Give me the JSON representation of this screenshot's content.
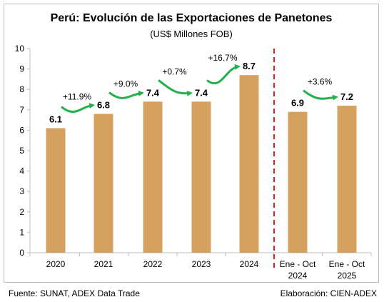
{
  "title": "Perú: Evolución de las Exportaciones de Panetones",
  "subtitle": "(US$ Millones FOB)",
  "footer": {
    "source": "Fuente: SUNAT, ADEX Data Trade",
    "credit": "Elaboración: CIEN-ADEX"
  },
  "colors": {
    "bar": "#d4a15f",
    "arrow": "#22b14c",
    "divider": "#e02020",
    "axis": "#bfbfbf"
  },
  "chart_data": {
    "type": "bar",
    "categories": [
      [
        "2020"
      ],
      [
        "2021"
      ],
      [
        "2022"
      ],
      [
        "2023"
      ],
      [
        "2024"
      ],
      [
        "Ene - Oct",
        "2024"
      ],
      [
        "Ene - Oct",
        "2025"
      ]
    ],
    "values": [
      6.1,
      6.8,
      7.4,
      7.4,
      8.7,
      6.9,
      7.2
    ],
    "value_labels": [
      "6.1",
      "6.8",
      "7.4",
      "7.4",
      "8.7",
      "6.9",
      "7.2"
    ],
    "growth_labels": [
      {
        "from": 0,
        "to": 1,
        "text": "+11.9%"
      },
      {
        "from": 1,
        "to": 2,
        "text": "+9.0%"
      },
      {
        "from": 2,
        "to": 3,
        "text": "+0.7%"
      },
      {
        "from": 3,
        "to": 4,
        "text": "+16.7%"
      },
      {
        "from": 5,
        "to": 6,
        "text": "+3.6%"
      }
    ],
    "ylim": [
      0,
      10
    ],
    "yticks": [
      "0",
      "1",
      "2",
      "3",
      "4",
      "5",
      "6",
      "7",
      "8",
      "9",
      "10"
    ],
    "separator": "dashed vertical line between 2024 and Ene - Oct 2024",
    "grid": false,
    "legend": "none"
  }
}
